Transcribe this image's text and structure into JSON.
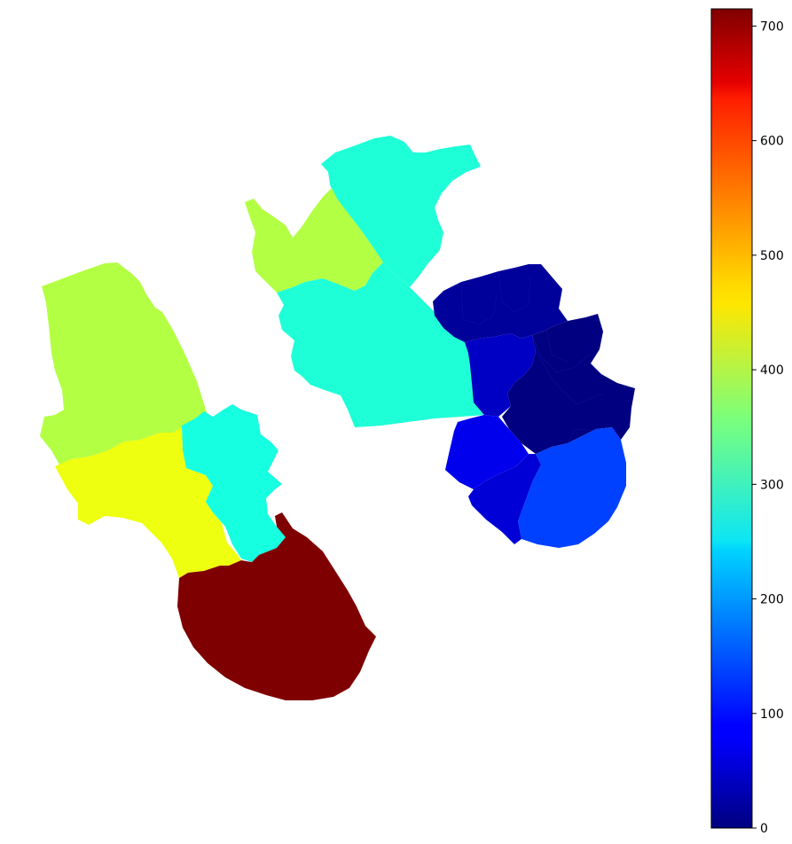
{
  "map": {
    "colormap": "jet",
    "background": "#ffffff",
    "regions": [
      {
        "id": "west-north",
        "value": 400,
        "color": "#b3ff44"
      },
      {
        "id": "west-middle",
        "value": 470,
        "color": "#eeff0f"
      },
      {
        "id": "west-central",
        "value": 280,
        "color": "#16ffe1"
      },
      {
        "id": "west-south",
        "value": 715,
        "color": "#7f0000"
      },
      {
        "id": "center-north",
        "value": 290,
        "color": "#1fffd7"
      },
      {
        "id": "center-northwest",
        "value": 400,
        "color": "#b3ff44"
      },
      {
        "id": "center-main",
        "value": 290,
        "color": "#1fffd7"
      },
      {
        "id": "east-cluster-a",
        "value": 25,
        "color": "#00009b"
      },
      {
        "id": "east-cluster-b",
        "value": 45,
        "color": "#0000c4"
      },
      {
        "id": "east-cluster-c",
        "value": 10,
        "color": "#000080"
      },
      {
        "id": "east-cluster-d",
        "value": 75,
        "color": "#0000ed"
      },
      {
        "id": "east-cluster-e",
        "value": 120,
        "color": "#0040ff"
      },
      {
        "id": "east-cluster-f",
        "value": 55,
        "color": "#0000d6"
      }
    ]
  },
  "colorbar": {
    "min": 0,
    "max": 715,
    "ticks": [
      "0",
      "100",
      "200",
      "300",
      "400",
      "500",
      "600",
      "700"
    ],
    "tick_values": [
      0,
      100,
      200,
      300,
      400,
      500,
      600,
      700
    ]
  }
}
